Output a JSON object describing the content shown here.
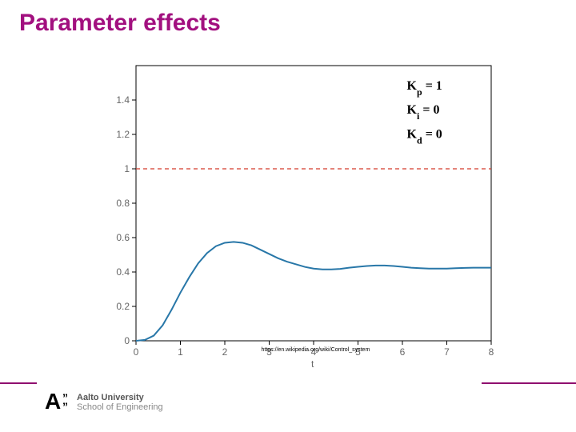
{
  "title": {
    "text": "Parameter effects",
    "color": "#a2107f",
    "fontsize": 30,
    "fontweight": 700
  },
  "chart": {
    "type": "line",
    "background_color": "#ffffff",
    "box_color": "#000000",
    "xlim": [
      0,
      8
    ],
    "ylim": [
      0,
      1.6
    ],
    "xticks": [
      0,
      1,
      2,
      3,
      4,
      5,
      6,
      7,
      8
    ],
    "yticks": [
      0,
      0.2,
      0.4,
      0.6,
      0.8,
      1,
      1.2,
      1.4
    ],
    "tick_label_color": "#666666",
    "tick_fontsize": 12,
    "xlabel": "t",
    "reference": {
      "y": 1,
      "color": "#d43b2a",
      "dash": "5,4",
      "width": 1.3
    },
    "curve": {
      "color": "#2877a8",
      "width": 2,
      "points": [
        [
          0.0,
          0.0
        ],
        [
          0.2,
          0.005
        ],
        [
          0.4,
          0.03
        ],
        [
          0.6,
          0.09
        ],
        [
          0.8,
          0.18
        ],
        [
          1.0,
          0.28
        ],
        [
          1.2,
          0.37
        ],
        [
          1.4,
          0.45
        ],
        [
          1.6,
          0.51
        ],
        [
          1.8,
          0.55
        ],
        [
          2.0,
          0.57
        ],
        [
          2.2,
          0.575
        ],
        [
          2.4,
          0.57
        ],
        [
          2.6,
          0.555
        ],
        [
          2.8,
          0.53
        ],
        [
          3.0,
          0.505
        ],
        [
          3.2,
          0.48
        ],
        [
          3.4,
          0.46
        ],
        [
          3.6,
          0.445
        ],
        [
          3.8,
          0.43
        ],
        [
          4.0,
          0.42
        ],
        [
          4.2,
          0.415
        ],
        [
          4.4,
          0.415
        ],
        [
          4.6,
          0.418
        ],
        [
          4.8,
          0.425
        ],
        [
          5.0,
          0.43
        ],
        [
          5.2,
          0.435
        ],
        [
          5.4,
          0.438
        ],
        [
          5.6,
          0.438
        ],
        [
          5.8,
          0.435
        ],
        [
          6.0,
          0.43
        ],
        [
          6.2,
          0.425
        ],
        [
          6.4,
          0.422
        ],
        [
          6.6,
          0.42
        ],
        [
          6.8,
          0.42
        ],
        [
          7.0,
          0.42
        ],
        [
          7.2,
          0.422
        ],
        [
          7.4,
          0.424
        ],
        [
          7.6,
          0.425
        ],
        [
          7.8,
          0.425
        ],
        [
          8.0,
          0.425
        ]
      ]
    },
    "params": [
      {
        "label": "Kp",
        "value": "1"
      },
      {
        "label": "Ki",
        "value": "0"
      },
      {
        "label": "Kd",
        "value": "0"
      }
    ],
    "param_pos": {
      "x_data": 6.1,
      "y_start_data": 1.46,
      "dy_data": 0.14,
      "fontsize": 16
    }
  },
  "source": {
    "text": "https://en.wikipedia.org/wiki/Control_system",
    "fontsize": 7
  },
  "footer": {
    "accent_color": "#8f0f6f",
    "university": "Aalto University",
    "school": "School of Engineering"
  }
}
